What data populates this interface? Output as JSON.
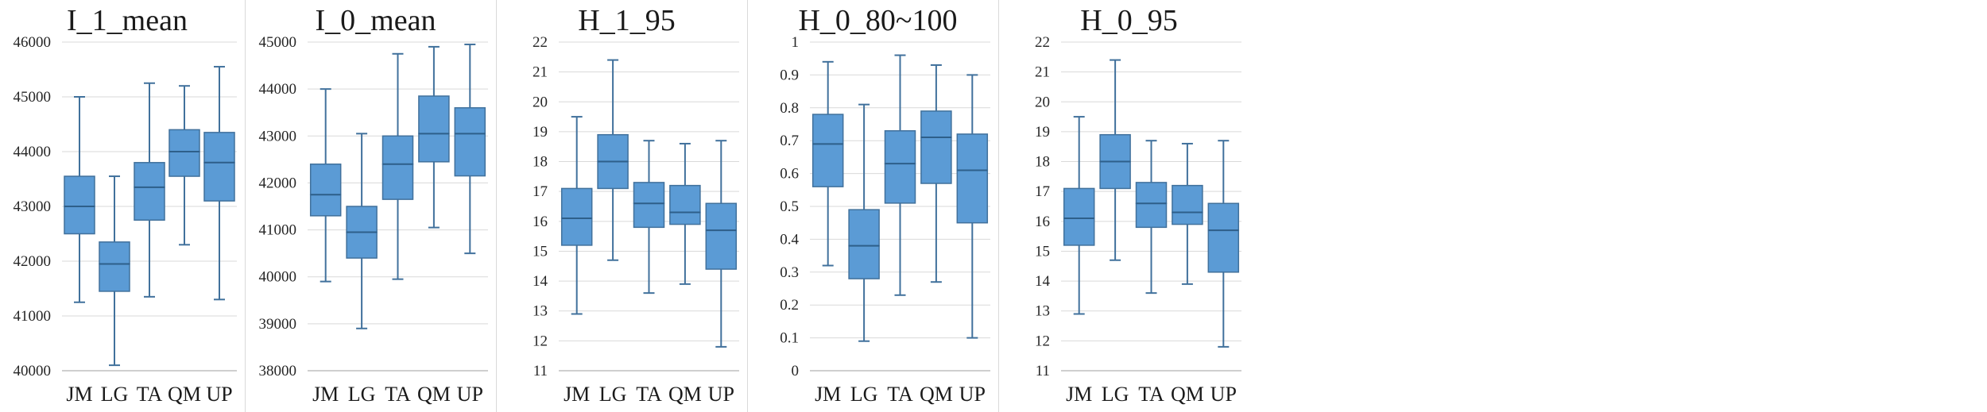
{
  "colors": {
    "box_fill": "#5b9bd5",
    "box_stroke": "#41719c",
    "grid": "#d9d9d9",
    "divider": "#d9d9d9"
  },
  "chart_data": [
    {
      "type": "box",
      "title": "I_1_mean",
      "categories": [
        "JM",
        "LG",
        "TA",
        "QM",
        "UP"
      ],
      "yticks": [
        40000,
        41000,
        42000,
        43000,
        44000,
        45000,
        46000
      ],
      "ylim": [
        40000,
        46000
      ],
      "grid": true,
      "boxes": [
        {
          "min": 41250,
          "q1": 42500,
          "median": 43000,
          "q3": 43550,
          "max": 45000
        },
        {
          "min": 40100,
          "q1": 41450,
          "median": 41950,
          "q3": 42350,
          "max": 43550
        },
        {
          "min": 41350,
          "q1": 42750,
          "median": 43350,
          "q3": 43800,
          "max": 45250
        },
        {
          "min": 42300,
          "q1": 43550,
          "median": 44000,
          "q3": 44400,
          "max": 45200
        },
        {
          "min": 41300,
          "q1": 43100,
          "median": 43800,
          "q3": 44350,
          "max": 45550
        }
      ]
    },
    {
      "type": "box",
      "title": "I_0_mean",
      "categories": [
        "JM",
        "LG",
        "TA",
        "QM",
        "UP"
      ],
      "yticks": [
        38000,
        39000,
        40000,
        41000,
        42000,
        43000,
        44000,
        45000
      ],
      "ylim": [
        38000,
        45000
      ],
      "grid": true,
      "boxes": [
        {
          "min": 39900,
          "q1": 41300,
          "median": 41750,
          "q3": 42400,
          "max": 44000
        },
        {
          "min": 38900,
          "q1": 40400,
          "median": 40950,
          "q3": 41500,
          "max": 43050
        },
        {
          "min": 39950,
          "q1": 41650,
          "median": 42400,
          "q3": 43000,
          "max": 44750
        },
        {
          "min": 41050,
          "q1": 42450,
          "median": 43050,
          "q3": 43850,
          "max": 44900
        },
        {
          "min": 40500,
          "q1": 42150,
          "median": 43050,
          "q3": 43600,
          "max": 44950
        }
      ]
    },
    {
      "type": "box",
      "title": "H_1_95",
      "categories": [
        "JM",
        "LG",
        "TA",
        "QM",
        "UP"
      ],
      "yticks": [
        11,
        12,
        13,
        14,
        15,
        16,
        17,
        18,
        19,
        20,
        21,
        22
      ],
      "ylim": [
        11,
        22
      ],
      "grid": true,
      "boxes": [
        {
          "min": 12.9,
          "q1": 15.2,
          "median": 16.1,
          "q3": 17.1,
          "max": 19.5
        },
        {
          "min": 14.7,
          "q1": 17.1,
          "median": 18.0,
          "q3": 18.9,
          "max": 21.4
        },
        {
          "min": 13.6,
          "q1": 15.8,
          "median": 16.6,
          "q3": 17.3,
          "max": 18.7
        },
        {
          "min": 13.9,
          "q1": 15.9,
          "median": 16.3,
          "q3": 17.2,
          "max": 18.6
        },
        {
          "min": 11.8,
          "q1": 14.4,
          "median": 15.7,
          "q3": 16.6,
          "max": 18.7
        }
      ]
    },
    {
      "type": "box",
      "title": "H_0_80~100",
      "categories": [
        "JM",
        "LG",
        "TA",
        "QM",
        "UP"
      ],
      "yticks": [
        0,
        0.1,
        0.2,
        0.3,
        0.4,
        0.5,
        0.6,
        0.7,
        0.8,
        0.9,
        1
      ],
      "ytick_labels": [
        "0",
        "0.1",
        "0.2",
        "0.3",
        "0.4",
        "0.5",
        "0.6",
        "0.7",
        "0.8",
        "0.9",
        "1"
      ],
      "ylim": [
        0,
        1
      ],
      "grid": true,
      "boxes": [
        {
          "min": 0.32,
          "q1": 0.56,
          "median": 0.69,
          "q3": 0.78,
          "max": 0.94
        },
        {
          "min": 0.09,
          "q1": 0.28,
          "median": 0.38,
          "q3": 0.49,
          "max": 0.81
        },
        {
          "min": 0.23,
          "q1": 0.51,
          "median": 0.63,
          "q3": 0.73,
          "max": 0.96
        },
        {
          "min": 0.27,
          "q1": 0.57,
          "median": 0.71,
          "q3": 0.79,
          "max": 0.93
        },
        {
          "min": 0.1,
          "q1": 0.45,
          "median": 0.61,
          "q3": 0.72,
          "max": 0.9
        }
      ]
    },
    {
      "type": "box",
      "title": "H_0_95",
      "categories": [
        "JM",
        "LG",
        "TA",
        "QM",
        "UP"
      ],
      "yticks": [
        11,
        12,
        13,
        14,
        15,
        16,
        17,
        18,
        19,
        20,
        21,
        22
      ],
      "ylim": [
        11,
        22
      ],
      "grid": true,
      "boxes": [
        {
          "min": 12.9,
          "q1": 15.2,
          "median": 16.1,
          "q3": 17.1,
          "max": 19.5
        },
        {
          "min": 14.7,
          "q1": 17.1,
          "median": 18.0,
          "q3": 18.9,
          "max": 21.4
        },
        {
          "min": 13.6,
          "q1": 15.8,
          "median": 16.6,
          "q3": 17.3,
          "max": 18.7
        },
        {
          "min": 13.9,
          "q1": 15.9,
          "median": 16.3,
          "q3": 17.2,
          "max": 18.6
        },
        {
          "min": 11.8,
          "q1": 14.3,
          "median": 15.7,
          "q3": 16.6,
          "max": 18.7
        }
      ]
    }
  ]
}
